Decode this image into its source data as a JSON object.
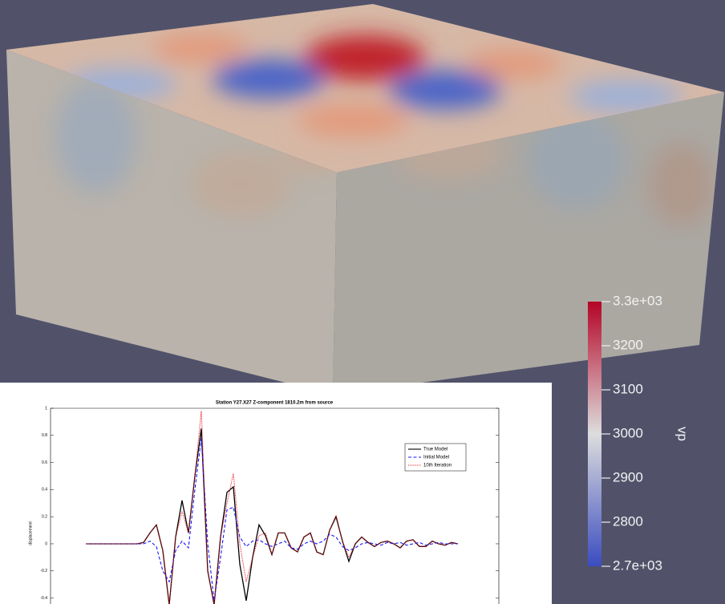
{
  "chart_data": [
    {
      "type": "line",
      "title": "Station Y27.X27 Z-component 1810.2m from source",
      "y_label": "displacement",
      "ylim": [
        -0.45,
        1
      ],
      "yticks": [
        -0.4,
        -0.2,
        {
          "value": 0,
          "label": "0"
        },
        0.2,
        0.4,
        0.6,
        0.8,
        1
      ],
      "legend": "upper right",
      "series": [
        {
          "name": "True Model",
          "color": "#000000",
          "dash": "solid",
          "values": [
            0,
            0,
            0,
            0,
            0,
            0,
            0,
            0,
            0,
            0.01,
            0.08,
            0.14,
            -0.05,
            -0.45,
            0.05,
            0.32,
            0.08,
            0.5,
            0.85,
            -0.2,
            -0.45,
            0.05,
            0.38,
            0.42,
            -0.15,
            -0.42,
            -0.1,
            0.14,
            0.06,
            -0.08,
            0.08,
            0.08,
            -0.03,
            -0.06,
            0.05,
            0.08,
            -0.06,
            -0.08,
            0.1,
            0.2,
            0.02,
            -0.13,
            0,
            0.05,
            0.01,
            -0.02,
            0.01,
            0.02,
            0,
            -0.03,
            0.02,
            0.03,
            -0.02,
            -0.02,
            0.02,
            0,
            -0.01,
            0.01,
            0
          ]
        },
        {
          "name": "Initial Model",
          "color": "#1a1aff",
          "dash": "dashed",
          "values": [
            0,
            0,
            0,
            0,
            0,
            0,
            0,
            0,
            0,
            0,
            0.02,
            -0.02,
            -0.2,
            -0.28,
            -0.05,
            0.02,
            -0.03,
            0.4,
            0.78,
            0,
            -0.42,
            -0.1,
            0.25,
            0.27,
            0.05,
            -0.02,
            0.02,
            0.03,
            0,
            -0.02,
            0,
            0.02,
            -0.03,
            -0.04,
            0,
            0.02,
            0,
            0.02,
            0.07,
            0.05,
            -0.02,
            -0.05,
            -0.03,
            0,
            0.01,
            0,
            -0.01,
            0.01,
            0,
            0.01,
            -0.01,
            0,
            0.01,
            -0.01,
            0,
            0.01,
            0,
            0,
            0
          ]
        },
        {
          "name": "10th Iteration",
          "color": "#e8101a",
          "dash": "dotted",
          "values": [
            0,
            0,
            0,
            0,
            0,
            0,
            0,
            0,
            0,
            0.01,
            0.08,
            0.14,
            -0.05,
            -0.45,
            0.05,
            0.24,
            0.08,
            0.5,
            0.98,
            -0.2,
            -0.45,
            0.05,
            0.3,
            0.52,
            0,
            -0.28,
            -0.1,
            0.06,
            0.08,
            -0.08,
            0.08,
            0.08,
            -0.03,
            -0.06,
            0.05,
            0.08,
            -0.06,
            -0.08,
            0.1,
            0.21,
            0.02,
            -0.1,
            0,
            0.05,
            0.01,
            -0.02,
            0.01,
            0.02,
            0,
            -0.03,
            0.02,
            0.03,
            -0.02,
            -0.02,
            0.02,
            0,
            -0.01,
            0.01,
            0
          ]
        }
      ]
    },
    {
      "type": "colorbar",
      "title": "vp",
      "colors": [
        "#3b4cc0",
        "#dddddd",
        "#b40426"
      ],
      "ylim": [
        2700,
        3300
      ],
      "yticks": [
        {
          "value": 2700,
          "label": "2.7e+03"
        },
        2800,
        2900,
        3000,
        3100,
        3200,
        {
          "value": 3300,
          "label": "3.3e+03"
        }
      ]
    }
  ]
}
